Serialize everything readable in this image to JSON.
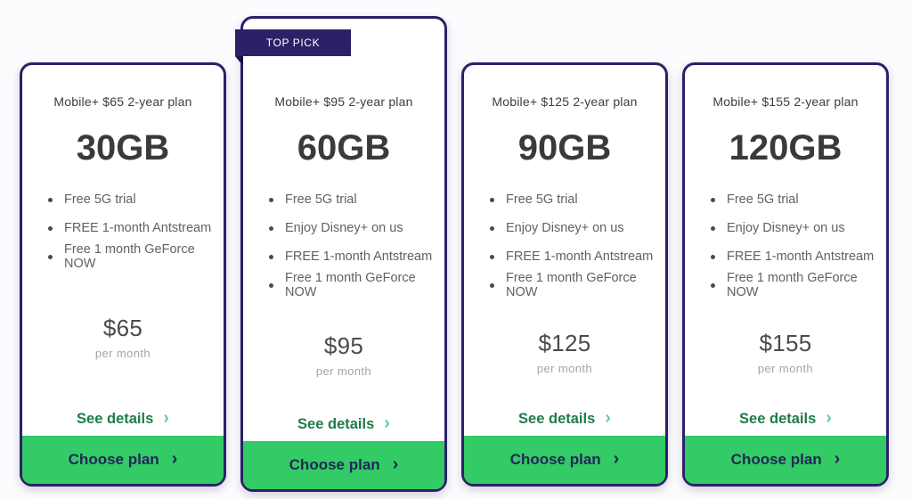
{
  "colors": {
    "navy": "#2a2168",
    "navy-dark": "#18124e",
    "green": "#33cb65",
    "green-dark": "#1e7c49",
    "green-light": "#5ed393",
    "btn-text": "#22265b",
    "page-bg": "#fcfbfd"
  },
  "badge": {
    "label": "TOP PICK"
  },
  "actions": {
    "see_details": "See details",
    "choose_plan": "Choose plan"
  },
  "icons": {
    "chevron_right": "›"
  },
  "plans": [
    {
      "title": "Mobile+ $65 2-year plan",
      "allowance": "30GB",
      "features": [
        "Free 5G trial",
        "FREE 1-month Antstream",
        "Free 1 month GeForce NOW"
      ],
      "price": "$65",
      "period": "per month"
    },
    {
      "title": "Mobile+ $95 2-year plan",
      "allowance": "60GB",
      "features": [
        "Free 5G trial",
        "Enjoy Disney+ on us",
        "FREE 1-month Antstream",
        "Free 1 month GeForce NOW"
      ],
      "price": "$95",
      "period": "per month"
    },
    {
      "title": "Mobile+ $125 2-year plan",
      "allowance": "90GB",
      "features": [
        "Free 5G trial",
        "Enjoy Disney+ on us",
        "FREE 1-month Antstream",
        "Free 1 month GeForce NOW"
      ],
      "price": "$125",
      "period": "per month"
    },
    {
      "title": "Mobile+ $155 2-year plan",
      "allowance": "120GB",
      "features": [
        "Free 5G trial",
        "Enjoy Disney+ on us",
        "FREE 1-month Antstream",
        "Free 1 month GeForce NOW"
      ],
      "price": "$155",
      "period": "per month"
    }
  ]
}
